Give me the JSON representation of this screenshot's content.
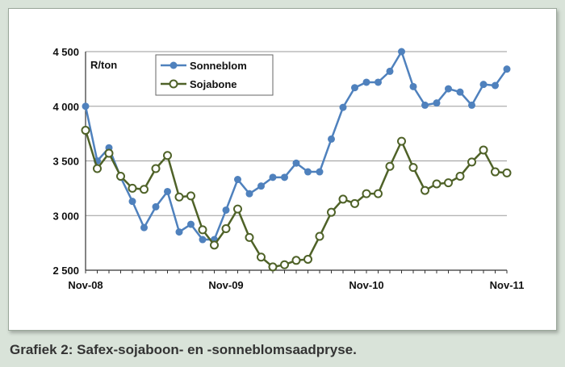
{
  "caption": "Grafiek 2: Safex-sojaboon- en -sonneblomsaadpryse.",
  "chart_data": {
    "type": "line",
    "unit_label": "R/ton",
    "ylim": [
      2500,
      4500
    ],
    "yticks": [
      2500,
      3000,
      3500,
      4000,
      4500
    ],
    "ytick_labels": [
      "2 500",
      "3 000",
      "3 500",
      "4 000",
      "4 500"
    ],
    "xtick_labels": [
      "Nov-08",
      "Nov-09",
      "Nov-10",
      "Nov-11"
    ],
    "xtick_index": [
      0,
      12,
      24,
      36
    ],
    "grid": true,
    "legend_position": "top-center",
    "series": [
      {
        "name": "Sonneblom",
        "color": "#4f81bd",
        "marker": "filled-circle",
        "values": [
          4000,
          3500,
          3620,
          3350,
          3130,
          2890,
          3080,
          3220,
          2850,
          2920,
          2780,
          2780,
          3050,
          3330,
          3200,
          3270,
          3350,
          3350,
          3480,
          3400,
          3400,
          3700,
          3990,
          4170,
          4220,
          4220,
          4320,
          4500,
          4180,
          4010,
          4030,
          4160,
          4130,
          4010,
          4200,
          4190,
          4340
        ]
      },
      {
        "name": "Sojabone",
        "color": "#4f6228",
        "marker": "open-circle",
        "values": [
          3780,
          3430,
          3570,
          3360,
          3250,
          3240,
          3430,
          3550,
          3170,
          3180,
          2870,
          2730,
          2880,
          3060,
          2800,
          2620,
          2530,
          2550,
          2590,
          2600,
          2810,
          3030,
          3150,
          3110,
          3200,
          3200,
          3450,
          3680,
          3440,
          3230,
          3290,
          3300,
          3360,
          3490,
          3600,
          3400,
          3390
        ]
      }
    ]
  }
}
